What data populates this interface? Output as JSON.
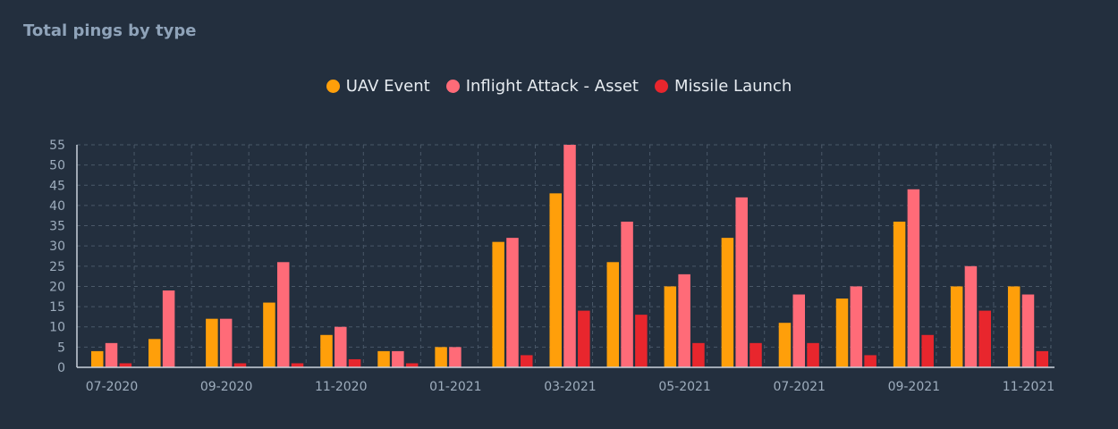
{
  "panel": {
    "title": "Total pings by type"
  },
  "chart_data": {
    "type": "bar",
    "title": "Total pings by type",
    "categories": [
      "07-2020",
      "08-2020",
      "09-2020",
      "10-2020",
      "11-2020",
      "12-2020",
      "01-2021",
      "02-2021",
      "03-2021",
      "04-2021",
      "05-2021",
      "06-2021",
      "07-2021",
      "08-2021",
      "09-2021",
      "10-2021",
      "11-2021"
    ],
    "x_tick_labels": [
      "07-2020",
      "09-2020",
      "11-2020",
      "01-2021",
      "03-2021",
      "05-2021",
      "07-2021",
      "09-2021",
      "11-2021"
    ],
    "series": [
      {
        "name": "UAV Event",
        "color": "#ff9f0a",
        "values": [
          4,
          7,
          12,
          16,
          8,
          4,
          5,
          31,
          43,
          26,
          20,
          32,
          11,
          17,
          36,
          20,
          20
        ]
      },
      {
        "name": "Inflight Attack - Asset",
        "color": "#ff6b78",
        "values": [
          6,
          19,
          12,
          26,
          10,
          4,
          5,
          32,
          55,
          36,
          23,
          42,
          18,
          20,
          44,
          25,
          18
        ]
      },
      {
        "name": "Missile Launch",
        "color": "#e8262d",
        "values": [
          1,
          0,
          1,
          1,
          2,
          1,
          0,
          3,
          14,
          13,
          6,
          6,
          6,
          3,
          8,
          14,
          4
        ]
      }
    ],
    "y_ticks": [
      0,
      5,
      10,
      15,
      20,
      25,
      30,
      35,
      40,
      45,
      50,
      55
    ],
    "ylim": [
      0,
      55
    ],
    "grid": true,
    "legend_position": "top-center"
  }
}
